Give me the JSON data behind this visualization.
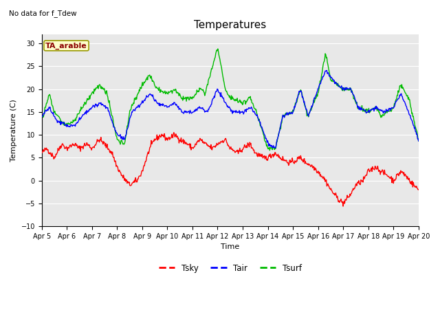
{
  "title": "Temperatures",
  "xlabel": "Time",
  "ylabel": "Temperature (C)",
  "top_left_text": "No data for f_Tdew",
  "box_label": "TA_arable",
  "ylim": [
    -10,
    32
  ],
  "yticks": [
    -10,
    -5,
    0,
    5,
    10,
    15,
    20,
    25,
    30
  ],
  "x_tick_labels": [
    "Apr 5",
    "Apr 6",
    "Apr 7",
    "Apr 8",
    "Apr 9",
    "Apr 10",
    "Apr 11",
    "Apr 12",
    "Apr 13",
    "Apr 14",
    "Apr 15",
    "Apr 16",
    "Apr 17",
    "Apr 18",
    "Apr 19",
    "Apr 20"
  ],
  "bg_color": "#e8e8e8",
  "fig_bg": "#ffffff",
  "tsky_color": "#ff0000",
  "tair_color": "#0000ff",
  "tsurf_color": "#00bb00",
  "linewidth": 1.0,
  "title_fontsize": 11,
  "axis_fontsize": 8,
  "tick_fontsize": 7
}
